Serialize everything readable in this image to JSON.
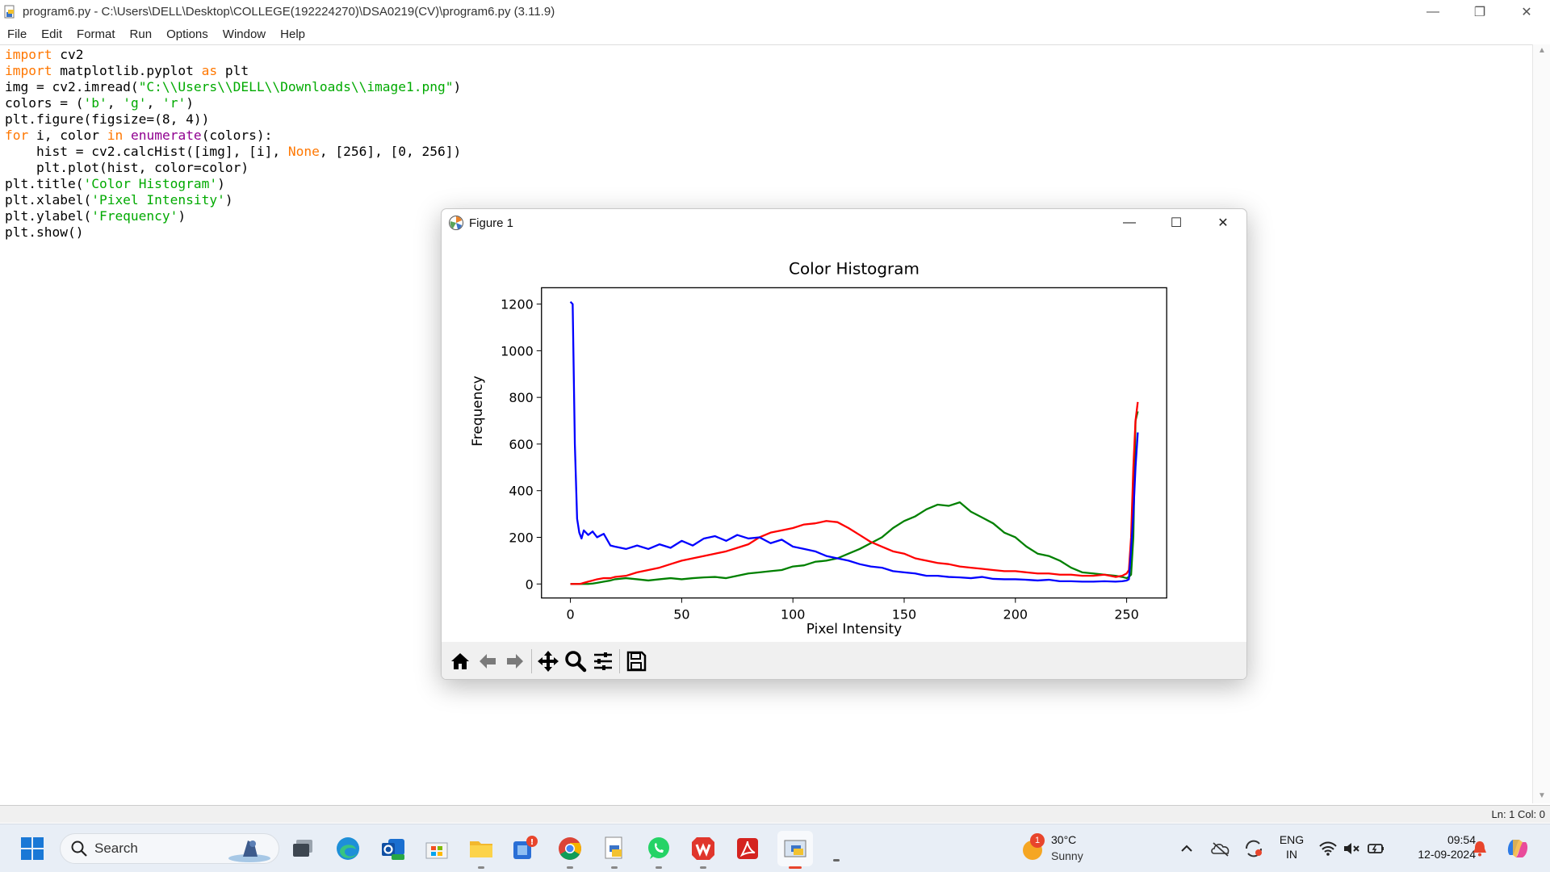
{
  "window": {
    "title": "program6.py - C:\\Users\\DELL\\Desktop\\COLLEGE(192224270)\\DSA0219(CV)\\program6.py (3.11.9)"
  },
  "menu": [
    "File",
    "Edit",
    "Format",
    "Run",
    "Options",
    "Window",
    "Help"
  ],
  "status": {
    "position": "Ln: 1   Col: 0"
  },
  "figure": {
    "title": "Figure 1",
    "toolbar": [
      "home-icon",
      "back-icon",
      "forward-icon",
      "pan-icon",
      "zoom-icon",
      "configure-subplots-icon",
      "save-icon"
    ]
  },
  "chart_data": {
    "type": "line",
    "title": "Color Histogram",
    "xlabel": "Pixel Intensity",
    "ylabel": "Frequency",
    "xlim": [
      -13,
      268
    ],
    "ylim": [
      -60,
      1270
    ],
    "xticks": [
      0,
      50,
      100,
      150,
      200,
      250
    ],
    "yticks": [
      0,
      200,
      400,
      600,
      800,
      1000,
      1200
    ],
    "grid": false,
    "x": [
      0,
      1,
      2,
      3,
      4,
      5,
      6,
      8,
      10,
      12,
      15,
      18,
      20,
      25,
      30,
      35,
      40,
      45,
      50,
      55,
      60,
      65,
      70,
      75,
      80,
      85,
      90,
      95,
      100,
      105,
      110,
      115,
      120,
      125,
      130,
      135,
      140,
      145,
      150,
      155,
      160,
      165,
      170,
      175,
      180,
      185,
      190,
      195,
      200,
      205,
      210,
      215,
      220,
      225,
      230,
      235,
      240,
      245,
      248,
      250,
      251,
      252,
      253,
      254,
      255
    ],
    "series": [
      {
        "color": "#0000ff",
        "values": [
          1210,
          1200,
          600,
          280,
          220,
          195,
          230,
          210,
          225,
          200,
          215,
          165,
          160,
          150,
          165,
          150,
          170,
          155,
          185,
          165,
          195,
          205,
          185,
          210,
          195,
          200,
          175,
          190,
          160,
          150,
          140,
          120,
          110,
          100,
          85,
          75,
          70,
          55,
          50,
          45,
          35,
          35,
          30,
          28,
          25,
          30,
          22,
          20,
          20,
          18,
          15,
          18,
          12,
          12,
          10,
          10,
          12,
          10,
          12,
          15,
          20,
          150,
          300,
          500,
          650
        ]
      },
      {
        "color": "#008000",
        "values": [
          0,
          0,
          0,
          0,
          0,
          0,
          0,
          0,
          2,
          5,
          10,
          15,
          20,
          25,
          20,
          15,
          20,
          25,
          20,
          25,
          28,
          30,
          25,
          35,
          45,
          50,
          55,
          60,
          75,
          80,
          95,
          100,
          110,
          130,
          150,
          175,
          200,
          240,
          270,
          290,
          320,
          340,
          335,
          350,
          310,
          285,
          260,
          220,
          200,
          160,
          130,
          120,
          100,
          70,
          50,
          45,
          40,
          35,
          30,
          25,
          30,
          40,
          200,
          700,
          740
        ]
      },
      {
        "color": "#ff0000",
        "values": [
          0,
          0,
          0,
          0,
          0,
          2,
          5,
          10,
          15,
          20,
          25,
          25,
          30,
          35,
          50,
          60,
          70,
          85,
          100,
          110,
          120,
          130,
          140,
          155,
          170,
          200,
          220,
          230,
          240,
          255,
          260,
          270,
          265,
          240,
          210,
          180,
          160,
          140,
          130,
          110,
          100,
          90,
          85,
          75,
          70,
          65,
          60,
          55,
          55,
          50,
          45,
          45,
          40,
          40,
          35,
          35,
          40,
          30,
          35,
          45,
          60,
          200,
          500,
          700,
          780
        ]
      }
    ]
  },
  "taskbar": {
    "search_label": "Search",
    "weather": {
      "temp": "30°C",
      "condition": "Sunny",
      "badge": "1"
    },
    "language": {
      "line1": "ENG",
      "line2": "IN"
    },
    "clock": {
      "time": "09:54",
      "date": "12-09-2024"
    }
  }
}
